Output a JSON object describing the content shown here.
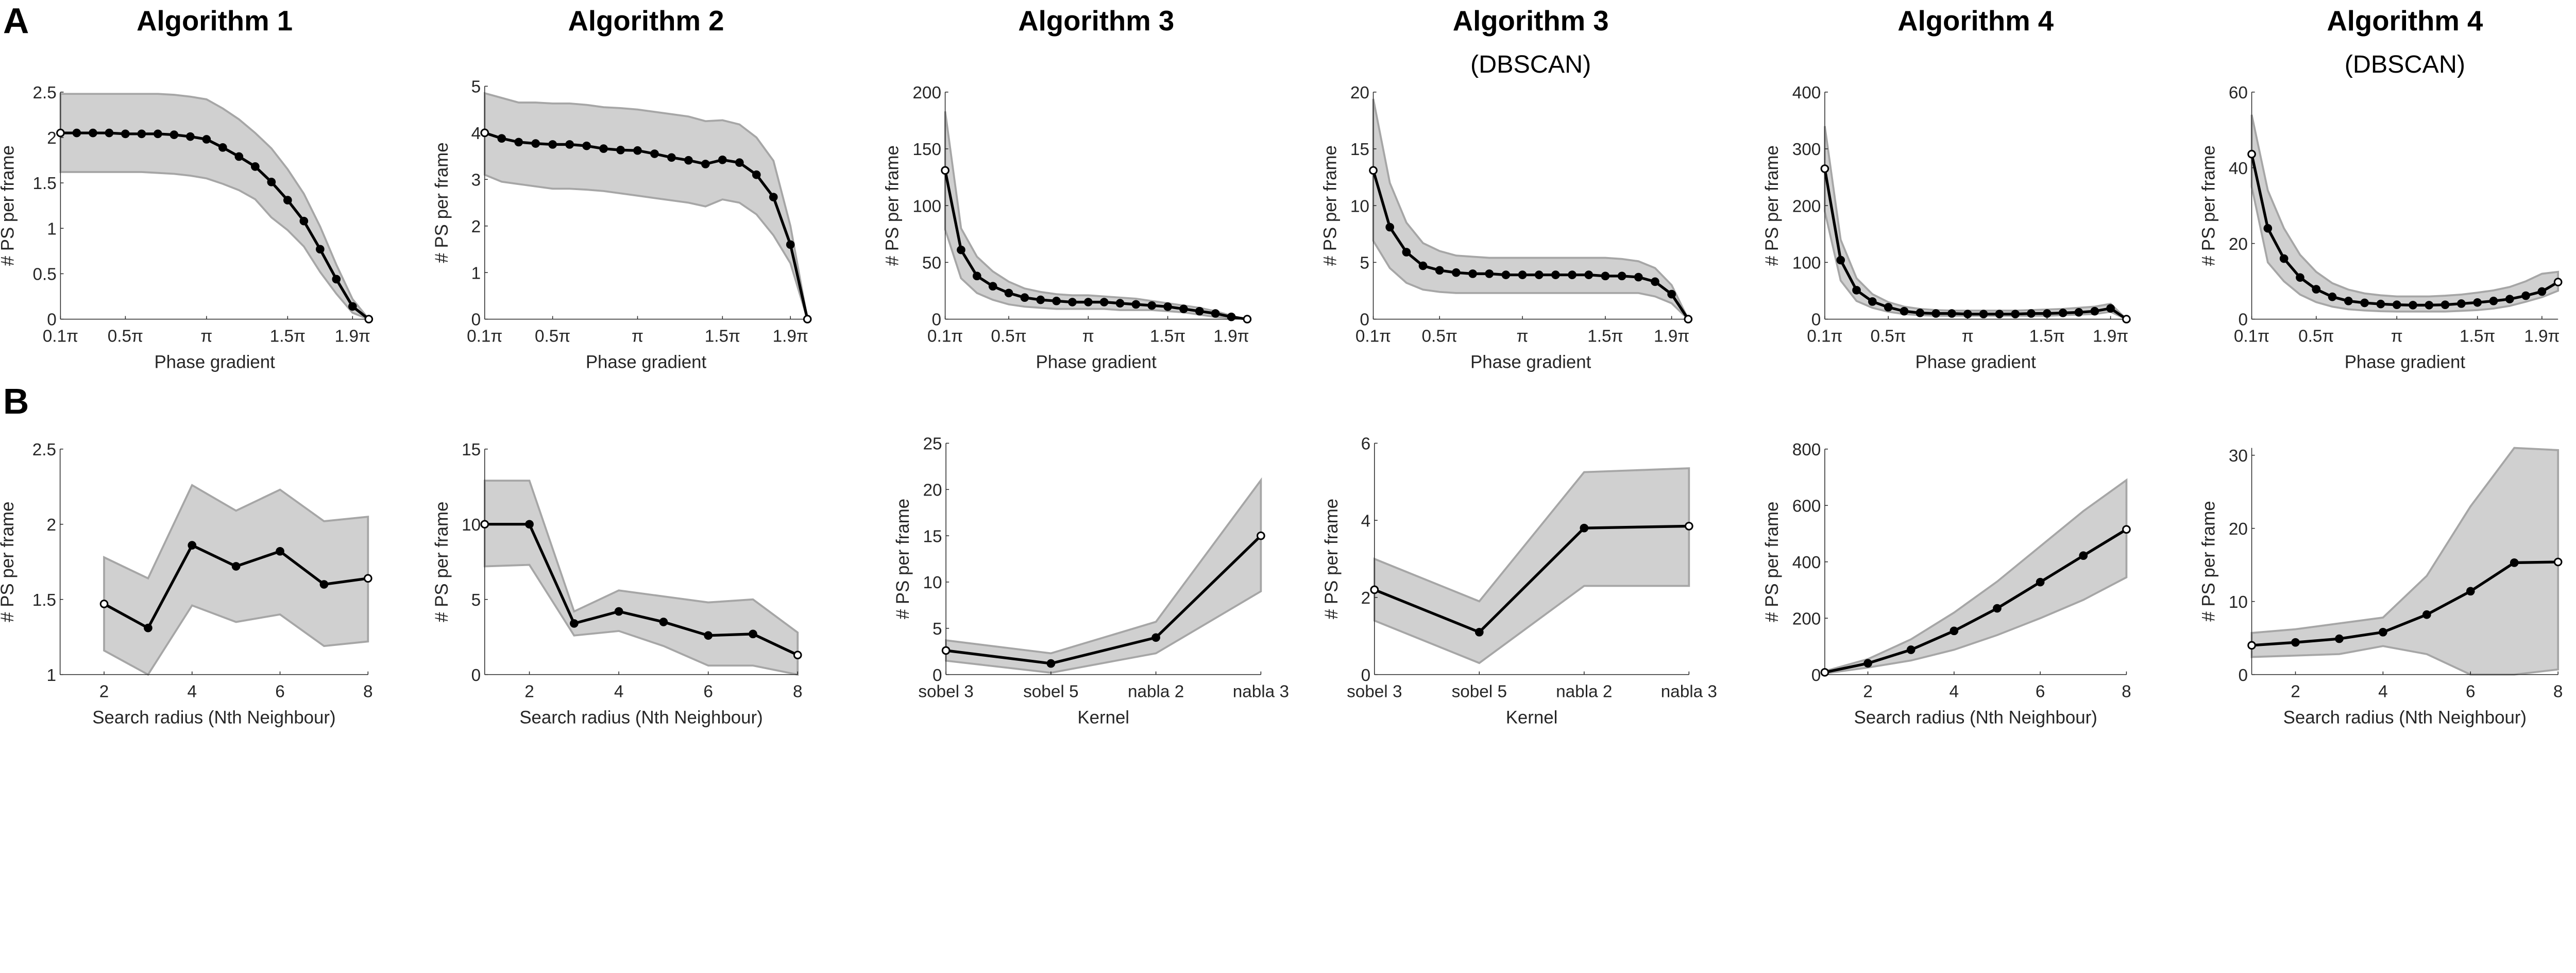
{
  "panel_labels": {
    "A": "A",
    "B": "B"
  },
  "colors": {
    "band": "#d0d0d0",
    "band_edge": "#a6a6a6",
    "line": "#000000",
    "axis": "#262626"
  },
  "chart_data": [
    {
      "id": "A1",
      "type": "line",
      "title": "Algorithm 1",
      "subtitle": "",
      "xlabel": "Phase gradient",
      "ylabel": "# PS per frame",
      "x": [
        0.1,
        0.2,
        0.3,
        0.4,
        0.5,
        0.6,
        0.7,
        0.8,
        0.9,
        1.0,
        1.1,
        1.2,
        1.3,
        1.4,
        1.5,
        1.6,
        1.7,
        1.8,
        1.9,
        2.0
      ],
      "x_unit": "π",
      "xlim": [
        0.1,
        2.0
      ],
      "xticks": [
        0.1,
        0.5,
        1,
        1.5,
        1.9
      ],
      "xticklabels": [
        "0.1π",
        "0.5π",
        "π",
        "1.5π",
        "1.9π"
      ],
      "ylim": [
        0,
        2.5
      ],
      "yticks": [
        0,
        0.5,
        1,
        1.5,
        2,
        2.5
      ],
      "yticklabels": [
        "0",
        "0.5",
        "1",
        "1.5",
        "2",
        "2.5"
      ],
      "mean": [
        2.05,
        2.05,
        2.05,
        2.05,
        2.04,
        2.04,
        2.04,
        2.03,
        2.01,
        1.98,
        1.89,
        1.79,
        1.68,
        1.51,
        1.31,
        1.08,
        0.77,
        0.44,
        0.14,
        0
      ],
      "upper": [
        2.48,
        2.48,
        2.48,
        2.48,
        2.48,
        2.48,
        2.48,
        2.47,
        2.45,
        2.42,
        2.32,
        2.2,
        2.05,
        1.88,
        1.65,
        1.38,
        1.02,
        0.6,
        0.22,
        0
      ],
      "lower": [
        1.62,
        1.62,
        1.62,
        1.62,
        1.62,
        1.62,
        1.61,
        1.6,
        1.58,
        1.55,
        1.49,
        1.42,
        1.32,
        1.12,
        0.98,
        0.8,
        0.52,
        0.28,
        0.07,
        0
      ]
    },
    {
      "id": "A2",
      "type": "line",
      "title": "Algorithm 2",
      "subtitle": "",
      "xlabel": "Phase gradient",
      "ylabel": "# PS per frame",
      "x": [
        0.1,
        0.2,
        0.3,
        0.4,
        0.5,
        0.6,
        0.7,
        0.8,
        0.9,
        1.0,
        1.1,
        1.2,
        1.3,
        1.4,
        1.5,
        1.6,
        1.7,
        1.8,
        1.9,
        2.0
      ],
      "x_unit": "π",
      "xlim": [
        0.1,
        2.0
      ],
      "xticks": [
        0.1,
        0.5,
        1,
        1.5,
        1.9
      ],
      "xticklabels": [
        "0.1π",
        "0.5π",
        "π",
        "1.5π",
        "1.9π"
      ],
      "ylim": [
        0,
        5
      ],
      "yticks": [
        0,
        1,
        2,
        3,
        4,
        5
      ],
      "yticklabels": [
        "0",
        "1",
        "2",
        "3",
        "4",
        "5"
      ],
      "mean": [
        4.0,
        3.88,
        3.8,
        3.77,
        3.75,
        3.75,
        3.72,
        3.66,
        3.63,
        3.62,
        3.55,
        3.47,
        3.41,
        3.33,
        3.42,
        3.36,
        3.1,
        2.62,
        1.6,
        0
      ],
      "upper": [
        4.85,
        4.75,
        4.65,
        4.65,
        4.63,
        4.63,
        4.6,
        4.55,
        4.53,
        4.5,
        4.45,
        4.4,
        4.35,
        4.25,
        4.27,
        4.18,
        3.9,
        3.4,
        2.0,
        0
      ],
      "lower": [
        3.1,
        2.95,
        2.9,
        2.85,
        2.8,
        2.8,
        2.78,
        2.75,
        2.7,
        2.65,
        2.6,
        2.55,
        2.5,
        2.42,
        2.57,
        2.5,
        2.25,
        1.8,
        1.2,
        0
      ]
    },
    {
      "id": "A3",
      "type": "line",
      "title": "Algorithm 3",
      "subtitle": "",
      "xlabel": "Phase gradient",
      "ylabel": "# PS per frame",
      "x": [
        0.1,
        0.2,
        0.3,
        0.4,
        0.5,
        0.6,
        0.7,
        0.8,
        0.9,
        1.0,
        1.1,
        1.2,
        1.3,
        1.4,
        1.5,
        1.6,
        1.7,
        1.8,
        1.9,
        2.0
      ],
      "x_unit": "π",
      "xlim": [
        0.1,
        2.0
      ],
      "xticks": [
        0.1,
        0.5,
        1,
        1.5,
        1.9
      ],
      "xticklabels": [
        "0.1π",
        "0.5π",
        "π",
        "1.5π",
        "1.9π"
      ],
      "ylim": [
        0,
        200
      ],
      "yticks": [
        0,
        50,
        100,
        150,
        200
      ],
      "yticklabels": [
        "0",
        "50",
        "100",
        "150",
        "200"
      ],
      "mean": [
        131,
        61,
        38,
        29,
        23,
        19,
        17,
        16,
        15,
        15,
        15,
        14,
        13,
        12,
        11,
        9,
        7,
        5,
        2,
        0
      ],
      "upper": [
        183,
        80,
        55,
        42,
        33,
        27,
        24,
        22,
        21,
        21,
        20,
        19,
        18,
        16,
        14,
        12,
        10,
        7,
        3,
        0
      ],
      "lower": [
        79,
        36,
        23,
        17,
        13,
        11,
        10,
        9,
        9,
        9,
        9,
        8,
        8,
        8,
        7,
        6,
        4,
        2,
        1,
        0
      ]
    },
    {
      "id": "A4",
      "type": "line",
      "title": "Algorithm 3",
      "subtitle": "(DBSCAN)",
      "xlabel": "Phase gradient",
      "ylabel": "# PS per frame",
      "x": [
        0.1,
        0.2,
        0.3,
        0.4,
        0.5,
        0.6,
        0.7,
        0.8,
        0.9,
        1.0,
        1.1,
        1.2,
        1.3,
        1.4,
        1.5,
        1.6,
        1.7,
        1.8,
        1.9,
        2.0
      ],
      "x_unit": "π",
      "xlim": [
        0.1,
        2.0
      ],
      "xticks": [
        0.1,
        0.5,
        1,
        1.5,
        1.9
      ],
      "xticklabels": [
        "0.1π",
        "0.5π",
        "π",
        "1.5π",
        "1.9π"
      ],
      "ylim": [
        0,
        20
      ],
      "yticks": [
        0,
        5,
        10,
        15,
        20
      ],
      "yticklabels": [
        "0",
        "5",
        "10",
        "15",
        "20"
      ],
      "mean": [
        13.1,
        8.1,
        5.9,
        4.7,
        4.3,
        4.1,
        4.0,
        4.0,
        3.9,
        3.9,
        3.9,
        3.9,
        3.9,
        3.9,
        3.8,
        3.8,
        3.7,
        3.3,
        2.2,
        0
      ],
      "upper": [
        19.4,
        12,
        8.5,
        6.7,
        6.0,
        5.6,
        5.5,
        5.4,
        5.4,
        5.4,
        5.4,
        5.4,
        5.4,
        5.4,
        5.4,
        5.3,
        5.1,
        4.5,
        3.0,
        0
      ],
      "lower": [
        6.9,
        4.5,
        3.2,
        2.6,
        2.4,
        2.3,
        2.3,
        2.3,
        2.3,
        2.3,
        2.3,
        2.3,
        2.3,
        2.3,
        2.3,
        2.3,
        2.3,
        2.0,
        1.4,
        0
      ]
    },
    {
      "id": "A5",
      "type": "line",
      "title": "Algorithm 4",
      "subtitle": "",
      "xlabel": "Phase gradient",
      "ylabel": "# PS per frame",
      "x": [
        0.1,
        0.2,
        0.3,
        0.4,
        0.5,
        0.6,
        0.7,
        0.8,
        0.9,
        1.0,
        1.1,
        1.2,
        1.3,
        1.4,
        1.5,
        1.6,
        1.7,
        1.8,
        1.9,
        2.0
      ],
      "x_unit": "π",
      "xlim": [
        0.1,
        2.0
      ],
      "xticks": [
        0.1,
        0.5,
        1,
        1.5,
        1.9
      ],
      "xticklabels": [
        "0.1π",
        "0.5π",
        "π",
        "1.5π",
        "1.9π"
      ],
      "ylim": [
        0,
        400
      ],
      "yticks": [
        0,
        100,
        200,
        300,
        400
      ],
      "yticklabels": [
        "0",
        "100",
        "200",
        "300",
        "400"
      ],
      "mean": [
        265,
        104,
        51,
        31,
        21,
        14,
        11,
        10,
        10,
        9,
        9,
        9,
        9,
        10,
        10,
        11,
        12,
        14,
        19,
        0
      ],
      "upper": [
        340,
        140,
        72,
        44,
        30,
        22,
        18,
        16,
        15,
        15,
        15,
        15,
        15,
        16,
        17,
        18,
        20,
        22,
        27,
        0
      ],
      "lower": [
        190,
        68,
        32,
        20,
        13,
        9,
        7,
        6,
        6,
        6,
        6,
        6,
        6,
        6,
        6,
        7,
        8,
        9,
        13,
        0
      ]
    },
    {
      "id": "A6",
      "type": "line",
      "title": "Algorithm 4",
      "subtitle": "(DBSCAN)",
      "xlabel": "Phase gradient",
      "ylabel": "# PS per frame",
      "x": [
        0.1,
        0.2,
        0.3,
        0.4,
        0.5,
        0.6,
        0.7,
        0.8,
        0.9,
        1.0,
        1.1,
        1.2,
        1.3,
        1.4,
        1.5,
        1.6,
        1.7,
        1.8,
        1.9,
        2.0
      ],
      "x_unit": "π",
      "xlim": [
        0.1,
        2.0
      ],
      "xticks": [
        0.1,
        0.5,
        1,
        1.5,
        1.9
      ],
      "xticklabels": [
        "0.1π",
        "0.5π",
        "π",
        "1.5π",
        "1.9π"
      ],
      "ylim": [
        0,
        60
      ],
      "yticks": [
        0,
        20,
        40,
        60
      ],
      "yticklabels": [
        "0",
        "20",
        "40",
        "60"
      ],
      "mean": [
        43.6,
        24,
        16,
        11,
        7.9,
        5.9,
        4.8,
        4.3,
        4.0,
        3.8,
        3.7,
        3.7,
        3.8,
        4.1,
        4.4,
        4.8,
        5.3,
        6.2,
        7.3,
        9.8
      ],
      "upper": [
        54,
        34,
        24,
        17,
        12.5,
        9.5,
        7.8,
        6.8,
        6.3,
        6,
        6,
        6,
        6.2,
        6.5,
        7,
        7.6,
        8.5,
        10,
        12,
        12.5
      ],
      "lower": [
        35,
        15,
        10,
        6.5,
        4.5,
        3.3,
        2.6,
        2.3,
        2.1,
        2,
        2,
        2,
        2,
        2.2,
        2.4,
        2.8,
        3.5,
        4.6,
        5.8,
        7.5
      ]
    },
    {
      "id": "B1",
      "type": "line",
      "title": "",
      "subtitle": "",
      "xlabel": "Search radius (Nth Neighbour)",
      "ylabel": "# PS per frame",
      "x": [
        2,
        3,
        4,
        5,
        6,
        7,
        8
      ],
      "xlim": [
        1,
        8
      ],
      "xticks": [
        2,
        4,
        6,
        8
      ],
      "xticklabels": [
        "2",
        "4",
        "6",
        "8"
      ],
      "ylim": [
        1,
        2.5
      ],
      "yticks": [
        1,
        1.5,
        2,
        2.5
      ],
      "yticklabels": [
        "1",
        "1.5",
        "2",
        "2.5"
      ],
      "mean": [
        1.47,
        1.31,
        1.86,
        1.72,
        1.82,
        1.6,
        1.64
      ],
      "upper": [
        1.78,
        1.64,
        2.26,
        2.09,
        2.23,
        2.02,
        2.05
      ],
      "lower": [
        1.16,
        1.0,
        1.46,
        1.35,
        1.4,
        1.19,
        1.22
      ]
    },
    {
      "id": "B2",
      "type": "line",
      "title": "",
      "subtitle": "",
      "xlabel": "Search radius (Nth Neighbour)",
      "ylabel": "# PS per frame",
      "x": [
        1,
        2,
        3,
        4,
        5,
        6,
        7,
        8
      ],
      "xlim": [
        1,
        8
      ],
      "xticks": [
        2,
        4,
        6,
        8
      ],
      "xticklabels": [
        "2",
        "4",
        "6",
        "8"
      ],
      "ylim": [
        0,
        15
      ],
      "yticks": [
        0,
        5,
        10,
        15
      ],
      "yticklabels": [
        "0",
        "5",
        "10",
        "15"
      ],
      "mean": [
        10,
        10,
        3.4,
        4.2,
        3.5,
        2.6,
        2.7,
        1.3
      ],
      "upper": [
        12.9,
        12.9,
        4.2,
        5.6,
        5.2,
        4.8,
        5.0,
        2.8
      ],
      "lower": [
        7.2,
        7.3,
        2.6,
        2.9,
        1.9,
        0.6,
        0.6,
        0
      ]
    },
    {
      "id": "B3",
      "type": "line",
      "title": "",
      "subtitle": "",
      "xlabel": "Kernel",
      "ylabel": "# PS per frame",
      "categories": [
        "sobel 3",
        "sobel 5",
        "nabla 2",
        "nabla 3"
      ],
      "x": [
        0,
        1,
        2,
        3
      ],
      "xlim": [
        0,
        3
      ],
      "xticks": [
        0,
        1,
        2,
        3
      ],
      "xticklabels": [
        "sobel 3",
        "sobel 5",
        "nabla 2",
        "nabla 3"
      ],
      "ylim": [
        0,
        25
      ],
      "yticks": [
        0,
        5,
        10,
        15,
        20,
        25
      ],
      "yticklabels": [
        "0",
        "5",
        "10",
        "15",
        "20",
        "25"
      ],
      "mean": [
        2.6,
        1.2,
        4,
        15
      ],
      "upper": [
        3.7,
        2.3,
        5.7,
        21
      ],
      "lower": [
        1.5,
        0.2,
        2.3,
        9
      ]
    },
    {
      "id": "B4",
      "type": "line",
      "title": "",
      "subtitle": "",
      "xlabel": "Kernel",
      "ylabel": "# PS per frame",
      "categories": [
        "sobel 3",
        "sobel 5",
        "nabla 2",
        "nabla 3"
      ],
      "x": [
        0,
        1,
        2,
        3
      ],
      "xlim": [
        0,
        3
      ],
      "xticks": [
        0,
        1,
        2,
        3
      ],
      "xticklabels": [
        "sobel 3",
        "sobel 5",
        "nabla 2",
        "nabla 3"
      ],
      "ylim": [
        0,
        6
      ],
      "yticks": [
        0,
        2,
        4,
        6
      ],
      "yticklabels": [
        "0",
        "2",
        "4",
        "6"
      ],
      "mean": [
        2.2,
        1.1,
        3.8,
        3.85
      ],
      "upper": [
        3.0,
        1.9,
        5.25,
        5.35
      ],
      "lower": [
        1.4,
        0.3,
        2.3,
        2.3
      ]
    },
    {
      "id": "B5",
      "type": "line",
      "title": "",
      "subtitle": "",
      "xlabel": "Search radius (Nth Neighbour)",
      "ylabel": "# PS per frame",
      "x": [
        1,
        2,
        3,
        4,
        5,
        6,
        7,
        8
      ],
      "xlim": [
        1,
        8
      ],
      "xticks": [
        2,
        4,
        6,
        8
      ],
      "xticklabels": [
        "2",
        "4",
        "6",
        "8"
      ],
      "ylim": [
        0,
        800
      ],
      "yticks": [
        0,
        200,
        400,
        600,
        800
      ],
      "yticklabels": [
        "0",
        "200",
        "400",
        "600",
        "800"
      ],
      "mean": [
        8,
        40,
        88,
        155,
        235,
        328,
        422,
        515
      ],
      "upper": [
        12,
        55,
        125,
        220,
        330,
        455,
        580,
        690
      ],
      "lower": [
        4,
        25,
        50,
        88,
        140,
        200,
        265,
        345
      ]
    },
    {
      "id": "B6",
      "type": "line",
      "title": "",
      "subtitle": "",
      "xlabel": "Search radius (Nth Neighbour)",
      "ylabel": "# PS per frame",
      "x": [
        1,
        2,
        3,
        4,
        5,
        6,
        7,
        8
      ],
      "xlim": [
        1,
        8
      ],
      "xticks": [
        2,
        4,
        6,
        8
      ],
      "xticklabels": [
        "2",
        "4",
        "6",
        "8"
      ],
      "ylim": [
        0,
        31
      ],
      "yticks": [
        0,
        10,
        20,
        30
      ],
      "yticklabels": [
        "0",
        "10",
        "20",
        "30"
      ],
      "mean": [
        4.0,
        4.4,
        4.9,
        5.8,
        8.2,
        11.4,
        15.3,
        15.4
      ],
      "upper": [
        5.7,
        6.2,
        7.0,
        7.8,
        13.5,
        23,
        31,
        30.7
      ],
      "lower": [
        2.4,
        2.6,
        2.8,
        3.9,
        2.8,
        0,
        0,
        0.7
      ]
    }
  ]
}
